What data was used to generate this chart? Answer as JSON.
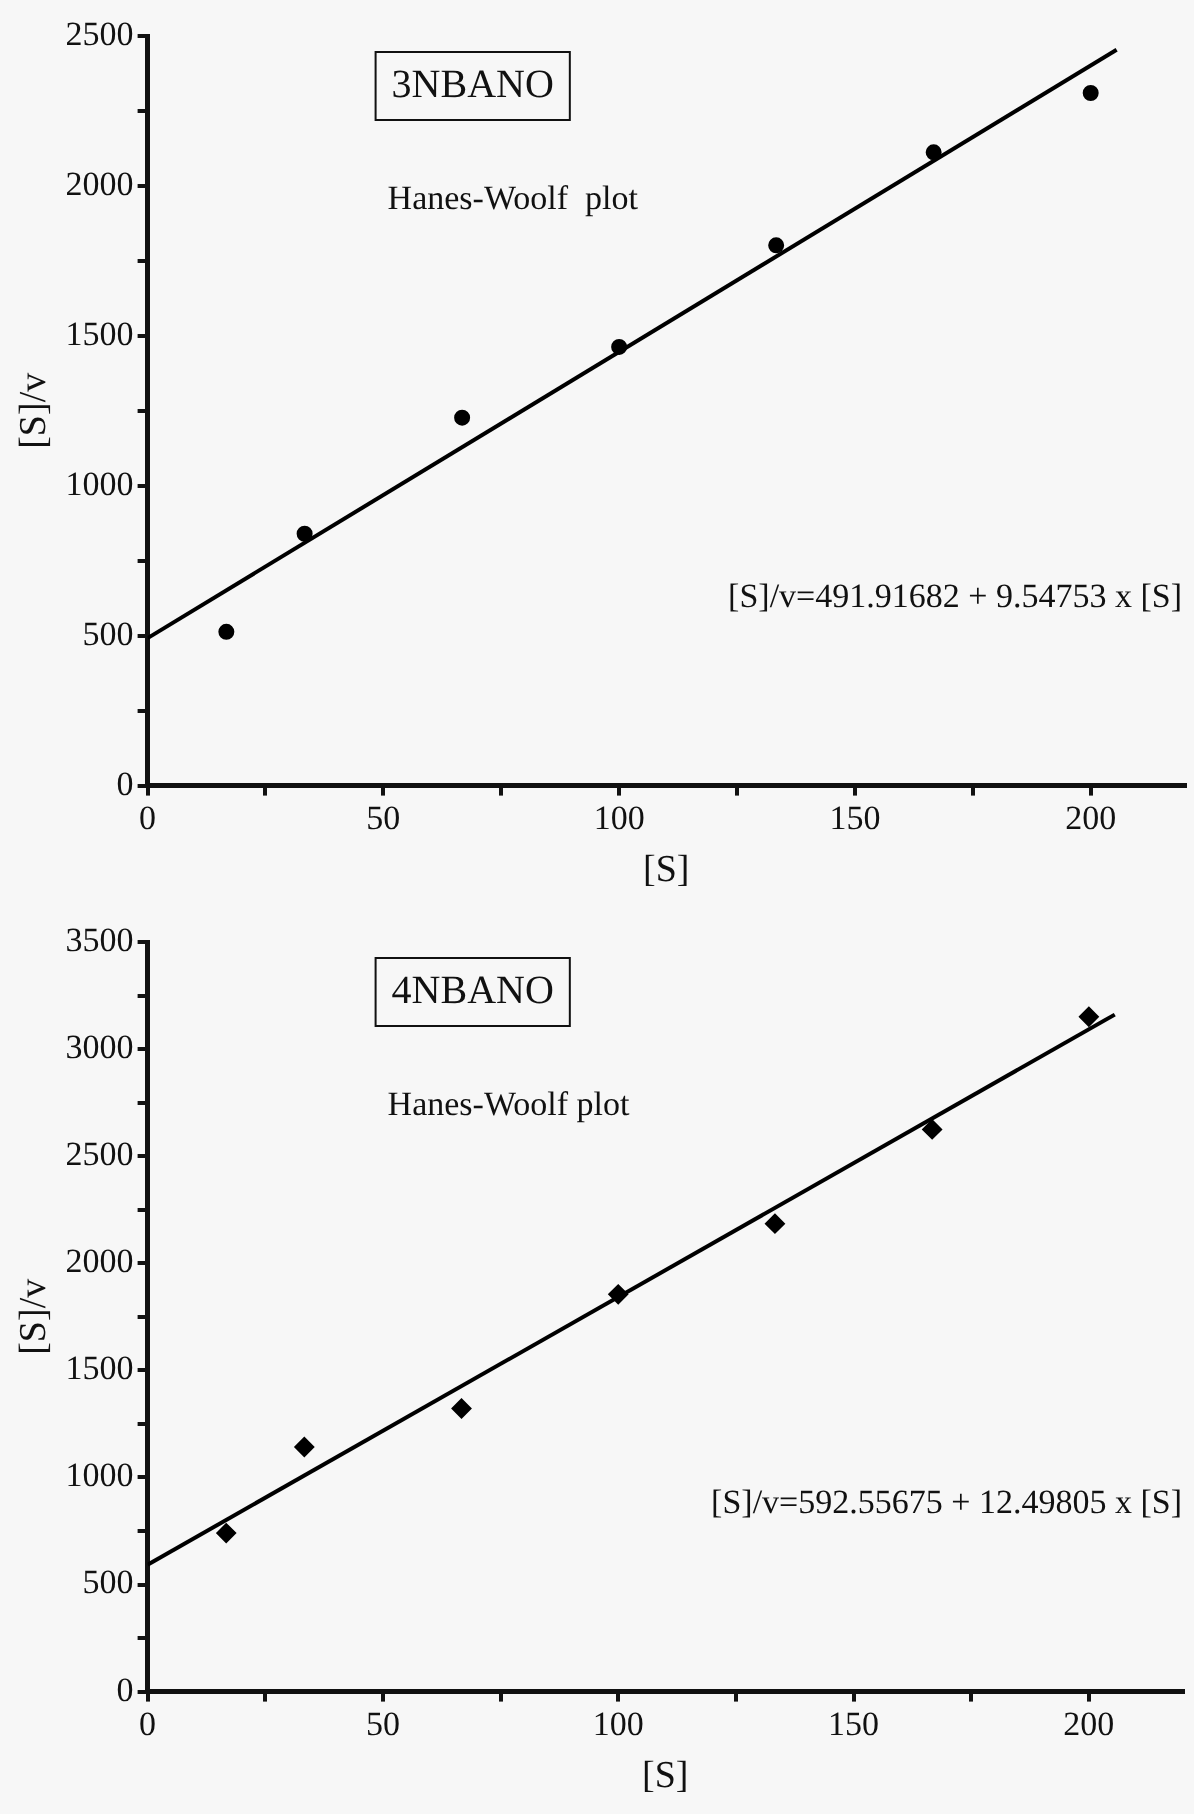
{
  "chart_data": [
    {
      "type": "scatter",
      "title": "3NBANO",
      "xlabel": "[S]",
      "ylabel": "[S]/v",
      "marker": "circle",
      "grid": false,
      "legend": false,
      "annotations": [
        "Hanes-Woolf  plot",
        "[S]/v=491.91682 + 9.54753 x [S]"
      ],
      "xlim": [
        0,
        220
      ],
      "xticks": [
        0,
        {
          "value": 25,
          "label": null
        },
        50,
        {
          "value": 75,
          "label": null
        },
        100,
        {
          "value": 125,
          "label": null
        },
        150,
        {
          "value": 175,
          "label": null
        },
        200
      ],
      "ylim": [
        0,
        2500
      ],
      "yticks": [
        0,
        {
          "value": 250,
          "label": null
        },
        500,
        {
          "value": 750,
          "label": null
        },
        1000,
        {
          "value": 1250,
          "label": null
        },
        1500,
        {
          "value": 1750,
          "label": null
        },
        2000,
        {
          "value": 2250,
          "label": null
        },
        2500
      ],
      "series": [
        {
          "color": "#000000",
          "x": [
            16.7,
            33.3,
            66.7,
            100,
            133.3,
            166.7,
            200
          ],
          "values": [
            513,
            840,
            1227,
            1463,
            1802,
            2112,
            2310
          ]
        },
        {
          "type": "line",
          "color": "#000000",
          "marker": "none",
          "x": [
            0,
            205.5
          ],
          "values": [
            491.9,
            2453.9
          ]
        }
      ]
    },
    {
      "type": "scatter",
      "title": "4NBANO",
      "xlabel": "[S]",
      "ylabel": "[S]/v",
      "marker": "diamond",
      "grid": false,
      "legend": false,
      "annotations": [
        "Hanes-Woolf plot",
        "[S]/v=592.55675 + 12.49805 x [S]"
      ],
      "xlim": [
        0,
        220
      ],
      "xticks": [
        0,
        {
          "value": 25,
          "label": null
        },
        50,
        {
          "value": 75,
          "label": null
        },
        100,
        {
          "value": 125,
          "label": null
        },
        150,
        {
          "value": 175,
          "label": null
        },
        200
      ],
      "ylim": [
        0,
        3500
      ],
      "yticks": [
        0,
        {
          "value": 250,
          "label": null
        },
        500,
        {
          "value": 750,
          "label": null
        },
        1000,
        {
          "value": 1250,
          "label": null
        },
        1500,
        {
          "value": 1750,
          "label": null
        },
        2000,
        {
          "value": 2250,
          "label": null
        },
        2500,
        {
          "value": 2750,
          "label": null
        },
        3000,
        {
          "value": 3250,
          "label": null
        },
        3500
      ],
      "series": [
        {
          "color": "#000000",
          "x": [
            16.7,
            33.3,
            66.7,
            100,
            133.3,
            166.7,
            200
          ],
          "values": [
            740,
            1142,
            1322,
            1855,
            2185,
            2625,
            3151
          ]
        },
        {
          "type": "line",
          "color": "#000000",
          "marker": "none",
          "x": [
            0,
            205.5
          ],
          "values": [
            592.6,
            3160.9
          ]
        }
      ]
    }
  ]
}
